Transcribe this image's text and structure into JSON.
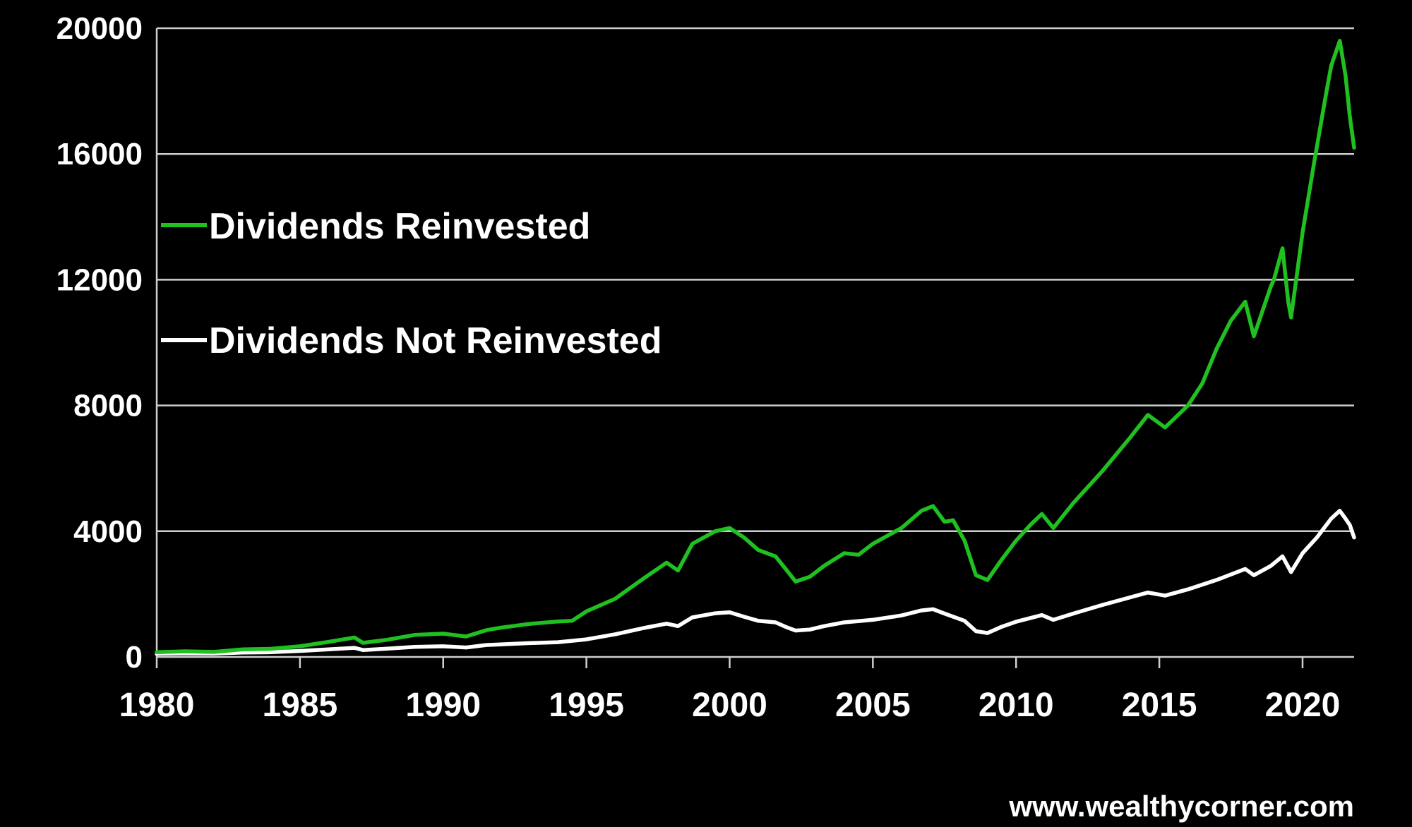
{
  "colors": {
    "background": "#000000",
    "reinvested": "#1fc01f",
    "not_reinvested": "#ffffff",
    "grid": "#cfcfcf"
  },
  "source": "www.wealthycorner.com",
  "chart_data": {
    "type": "line",
    "title": "",
    "xlabel": "",
    "ylabel": "",
    "xlim": [
      1980,
      2021.8
    ],
    "ylim": [
      0,
      20000
    ],
    "x_ticks": [
      1980,
      1985,
      1990,
      1995,
      2000,
      2005,
      2010,
      2015,
      2020
    ],
    "y_ticks": [
      0,
      4000,
      8000,
      12000,
      16000,
      20000
    ],
    "grid": "horizontal",
    "legend_position": "top-left",
    "series": [
      {
        "name": "Dividends Reinvested",
        "color": "#1fc01f",
        "points": [
          [
            1980,
            150
          ],
          [
            1981,
            180
          ],
          [
            1982,
            160
          ],
          [
            1983,
            240
          ],
          [
            1984,
            260
          ],
          [
            1985,
            340
          ],
          [
            1986,
            480
          ],
          [
            1986.9,
            620
          ],
          [
            1987.2,
            450
          ],
          [
            1988,
            540
          ],
          [
            1989,
            700
          ],
          [
            1990,
            740
          ],
          [
            1990.8,
            650
          ],
          [
            1991.5,
            850
          ],
          [
            1992,
            930
          ],
          [
            1993,
            1050
          ],
          [
            1994,
            1130
          ],
          [
            1994.5,
            1150
          ],
          [
            1995,
            1450
          ],
          [
            1996,
            1850
          ],
          [
            1997,
            2500
          ],
          [
            1997.8,
            3000
          ],
          [
            1998.2,
            2750
          ],
          [
            1998.7,
            3600
          ],
          [
            1999.5,
            4000
          ],
          [
            2000,
            4100
          ],
          [
            2000.5,
            3800
          ],
          [
            2001,
            3400
          ],
          [
            2001.6,
            3200
          ],
          [
            2002,
            2750
          ],
          [
            2002.3,
            2400
          ],
          [
            2002.8,
            2550
          ],
          [
            2003.3,
            2900
          ],
          [
            2004,
            3300
          ],
          [
            2004.5,
            3250
          ],
          [
            2005,
            3600
          ],
          [
            2006,
            4100
          ],
          [
            2006.7,
            4650
          ],
          [
            2007.1,
            4800
          ],
          [
            2007.5,
            4300
          ],
          [
            2007.8,
            4350
          ],
          [
            2008.2,
            3700
          ],
          [
            2008.6,
            2600
          ],
          [
            2009,
            2450
          ],
          [
            2009.5,
            3100
          ],
          [
            2010,
            3700
          ],
          [
            2010.5,
            4200
          ],
          [
            2010.9,
            4550
          ],
          [
            2011.3,
            4100
          ],
          [
            2012,
            4900
          ],
          [
            2013,
            5900
          ],
          [
            2014,
            7000
          ],
          [
            2014.6,
            7700
          ],
          [
            2015.2,
            7300
          ],
          [
            2016,
            8000
          ],
          [
            2016.5,
            8700
          ],
          [
            2017,
            9800
          ],
          [
            2017.5,
            10700
          ],
          [
            2018,
            11300
          ],
          [
            2018.3,
            10200
          ],
          [
            2018.9,
            11800
          ],
          [
            2019,
            12000
          ],
          [
            2019.3,
            13000
          ],
          [
            2019.5,
            11300
          ],
          [
            2019.6,
            10800
          ],
          [
            2020,
            13500
          ],
          [
            2020.4,
            15700
          ],
          [
            2020.8,
            17800
          ],
          [
            2021,
            18800
          ],
          [
            2021.3,
            19600
          ],
          [
            2021.5,
            18500
          ],
          [
            2021.65,
            17200
          ],
          [
            2021.8,
            16200
          ]
        ]
      },
      {
        "name": "Dividends Not Reinvested",
        "color": "#ffffff",
        "points": [
          [
            1980,
            100
          ],
          [
            1981,
            110
          ],
          [
            1982,
            105
          ],
          [
            1983,
            140
          ],
          [
            1984,
            150
          ],
          [
            1985,
            190
          ],
          [
            1986,
            240
          ],
          [
            1986.9,
            290
          ],
          [
            1987.2,
            220
          ],
          [
            1988,
            260
          ],
          [
            1989,
            320
          ],
          [
            1990,
            340
          ],
          [
            1990.8,
            300
          ],
          [
            1991.5,
            380
          ],
          [
            1992,
            400
          ],
          [
            1993,
            440
          ],
          [
            1994,
            470
          ],
          [
            1995,
            560
          ],
          [
            1996,
            720
          ],
          [
            1997,
            920
          ],
          [
            1997.8,
            1060
          ],
          [
            1998.2,
            980
          ],
          [
            1998.7,
            1260
          ],
          [
            1999.5,
            1390
          ],
          [
            2000,
            1420
          ],
          [
            2000.5,
            1280
          ],
          [
            2001,
            1150
          ],
          [
            2001.6,
            1100
          ],
          [
            2002,
            940
          ],
          [
            2002.3,
            840
          ],
          [
            2002.8,
            870
          ],
          [
            2003.3,
            980
          ],
          [
            2004,
            1100
          ],
          [
            2005,
            1180
          ],
          [
            2006,
            1320
          ],
          [
            2006.7,
            1480
          ],
          [
            2007.1,
            1520
          ],
          [
            2007.5,
            1380
          ],
          [
            2008.2,
            1150
          ],
          [
            2008.6,
            820
          ],
          [
            2009,
            760
          ],
          [
            2009.5,
            960
          ],
          [
            2010,
            1120
          ],
          [
            2010.9,
            1330
          ],
          [
            2011.3,
            1180
          ],
          [
            2012,
            1380
          ],
          [
            2013,
            1650
          ],
          [
            2014,
            1900
          ],
          [
            2014.6,
            2050
          ],
          [
            2015.2,
            1950
          ],
          [
            2016,
            2150
          ],
          [
            2017,
            2450
          ],
          [
            2018,
            2800
          ],
          [
            2018.3,
            2600
          ],
          [
            2018.9,
            2900
          ],
          [
            2019.3,
            3200
          ],
          [
            2019.6,
            2700
          ],
          [
            2020,
            3300
          ],
          [
            2020.5,
            3800
          ],
          [
            2021,
            4400
          ],
          [
            2021.3,
            4650
          ],
          [
            2021.5,
            4400
          ],
          [
            2021.65,
            4200
          ],
          [
            2021.8,
            3800
          ]
        ]
      }
    ]
  }
}
